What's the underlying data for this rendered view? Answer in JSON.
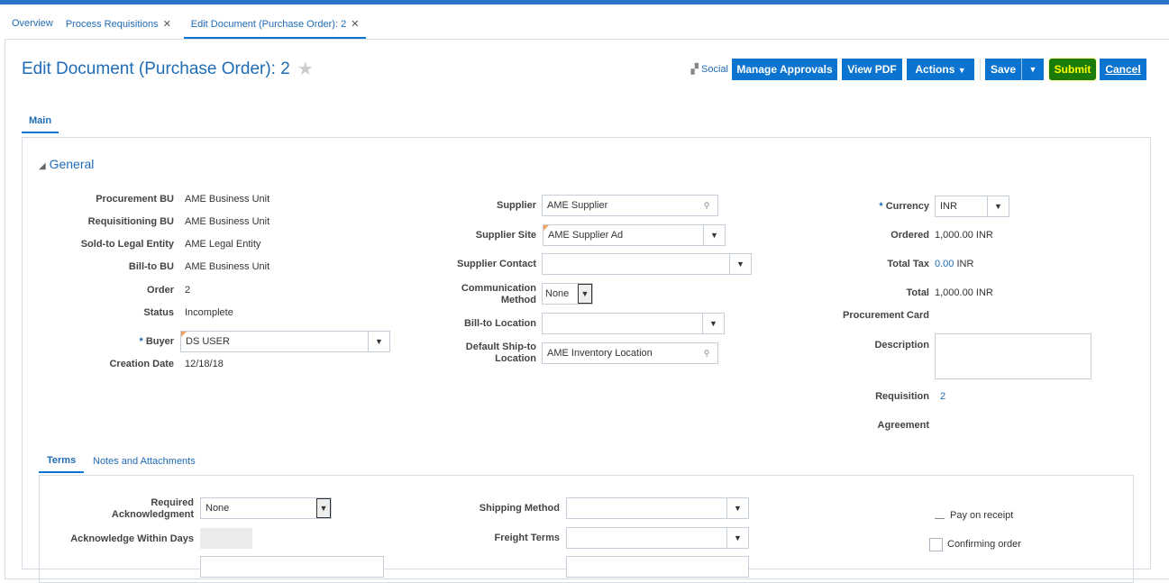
{
  "tabs": [
    {
      "label": "Overview"
    },
    {
      "label": "Process Requisitions"
    },
    {
      "label": "Edit Document (Purchase Order): 2"
    }
  ],
  "title": "Edit Document (Purchase Order): 2",
  "toolbar": {
    "social": "Social",
    "manage_approvals": "Manage Approvals",
    "view_pdf": "View PDF",
    "actions": "Actions",
    "save": "Save",
    "submit": "Submit",
    "cancel": "Cancel"
  },
  "main_tab": "Main",
  "section": "General",
  "left": {
    "procurement_bu_label": "Procurement BU",
    "procurement_bu": "AME Business Unit",
    "req_bu_label": "Requisitioning BU",
    "req_bu": "AME Business Unit",
    "legal_label": "Sold-to Legal Entity",
    "legal": "AME Legal Entity",
    "billto_bu_label": "Bill-to BU",
    "billto_bu": "AME Business Unit",
    "order_label": "Order",
    "order": "2",
    "status_label": "Status",
    "status": "Incomplete",
    "buyer_label": "Buyer",
    "buyer": "DS USER",
    "creation_label": "Creation Date",
    "creation": "12/18/18"
  },
  "middle": {
    "supplier_label": "Supplier",
    "supplier": "AME Supplier",
    "site_label": "Supplier Site",
    "site": "AME Supplier Ad",
    "contact_label": "Supplier Contact",
    "contact": "",
    "comm_label1": "Communication",
    "comm_label2": "Method",
    "comm": "None",
    "billto_label": "Bill-to Location",
    "billto": "",
    "shipto_label1": "Default Ship-to",
    "shipto_label2": "Location",
    "shipto": "AME Inventory Location"
  },
  "right": {
    "currency_label": "Currency",
    "currency": "INR",
    "ordered_label": "Ordered",
    "ordered": "1,000.00",
    "ordered_cur": "INR",
    "tax_label": "Total Tax",
    "tax": "0.00",
    "tax_cur": "INR",
    "total_label": "Total",
    "total": "1,000.00",
    "total_cur": "INR",
    "card_label": "Procurement Card",
    "desc_label": "Description",
    "desc": "",
    "req_label": "Requisition",
    "req": "2",
    "agreement_label": "Agreement"
  },
  "subtabs": [
    {
      "label": "Terms"
    },
    {
      "label": "Notes and Attachments"
    }
  ],
  "terms": {
    "ack_label1": "Required",
    "ack_label2": "Acknowledgment",
    "ack": "None",
    "days_label": "Acknowledge Within Days",
    "ship_label": "Shipping Method",
    "freight_label": "Freight Terms",
    "pay_receipt": "Pay on receipt",
    "confirming": "Confirming order"
  },
  "colors": {
    "accent": "#0a74d0",
    "submit_highlight": "#ffff00"
  }
}
